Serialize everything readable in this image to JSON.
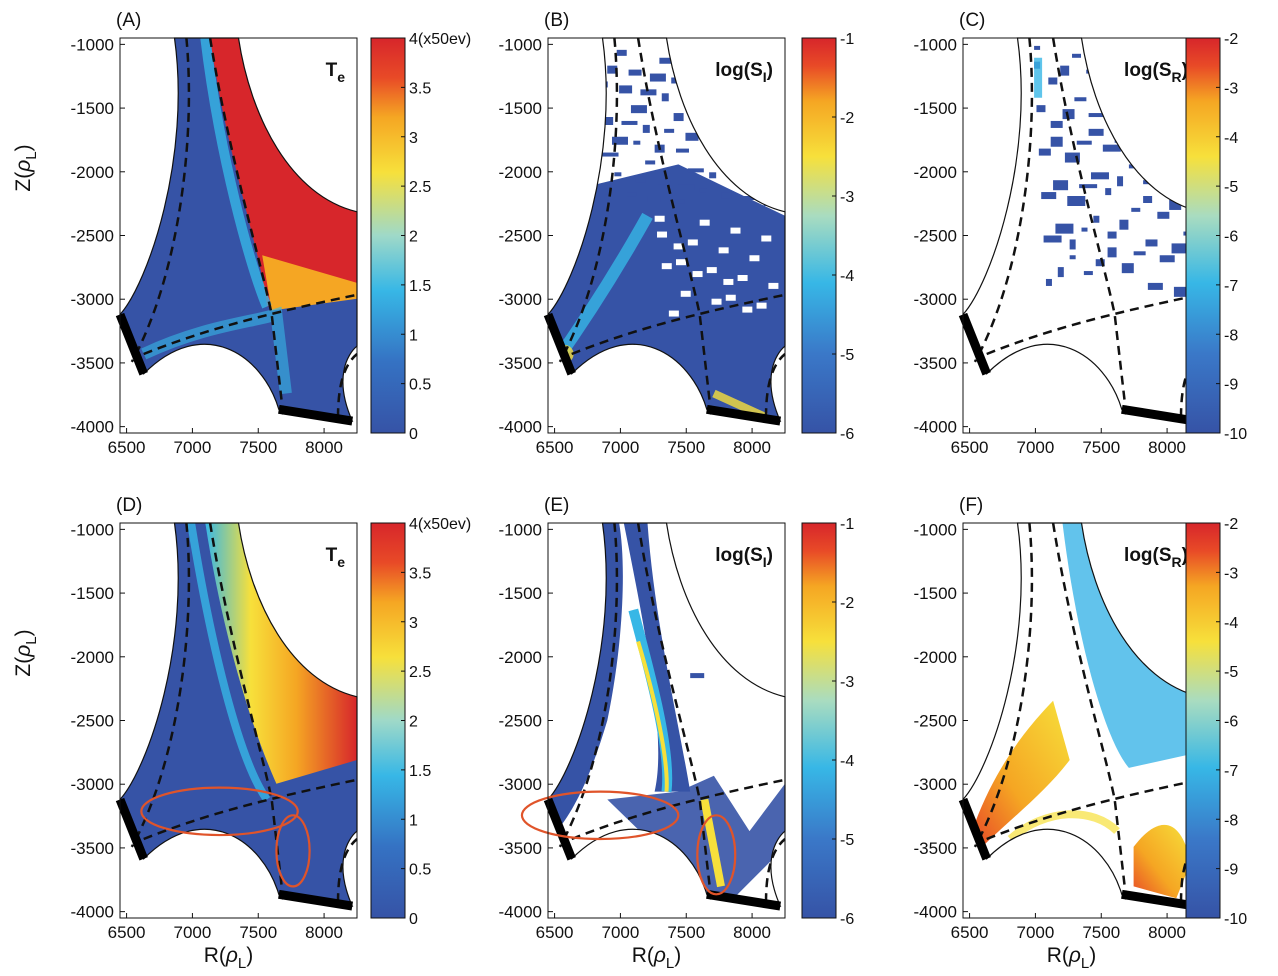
{
  "figure": {
    "ylabel_main": "Z(",
    "ylabel_sym": "ρ",
    "ylabel_sub": "L",
    "ylabel_close": ")",
    "xlabel_main": "R(",
    "xlabel_sym": "ρ",
    "xlabel_sub": "L",
    "xlabel_close": ")"
  },
  "colors": {
    "low": "#3653a6",
    "cyan": "#37b7e6",
    "yellow": "#f7e03b",
    "orange": "#f5a623",
    "red": "#d7262b",
    "wall": "#000000",
    "ellipse": "#e0542a",
    "separatrix": "#111111"
  },
  "chart_data": [
    {
      "panel": "(A)",
      "type": "heatmap",
      "quantity": "T",
      "quantity_sub": "e",
      "x_ticks": [
        "6500",
        "7000",
        "7500",
        "8000"
      ],
      "y_ticks": [
        "-1000",
        "-1500",
        "-2000",
        "-2500",
        "-3000",
        "-3500",
        "-4000"
      ],
      "xlim": [
        6450,
        8250
      ],
      "ylim": [
        -4050,
        -950
      ],
      "colorbar": {
        "ticks": [
          "4(x50ev)",
          "3.5",
          "3",
          "2.5",
          "2",
          "1.5",
          "1",
          "0.5",
          "0"
        ],
        "range": [
          0,
          4
        ],
        "unit": "(x50ev)"
      },
      "show_xlabel": false
    },
    {
      "panel": "(B)",
      "type": "heatmap",
      "quantity": "log(S",
      "quantity_sub": "I",
      "quantity_close": ")",
      "x_ticks": [
        "6500",
        "7000",
        "7500",
        "8000"
      ],
      "y_ticks": [
        "-1000",
        "-1500",
        "-2000",
        "-2500",
        "-3000",
        "-3500",
        "-4000"
      ],
      "xlim": [
        6450,
        8250
      ],
      "ylim": [
        -4050,
        -950
      ],
      "colorbar": {
        "ticks": [
          "-1",
          "-2",
          "-3",
          "-4",
          "-5",
          "-6"
        ],
        "range": [
          -6,
          -1
        ]
      },
      "show_xlabel": false
    },
    {
      "panel": "(C)",
      "type": "heatmap",
      "quantity": "log(S",
      "quantity_sub": "R",
      "quantity_close": ")",
      "x_ticks": [
        "6500",
        "7000",
        "7500",
        "8000"
      ],
      "y_ticks": [
        "-1000",
        "-1500",
        "-2000",
        "-2500",
        "-3000",
        "-3500",
        "-4000"
      ],
      "xlim": [
        6450,
        8250
      ],
      "ylim": [
        -4050,
        -950
      ],
      "colorbar": {
        "ticks": [
          "-2",
          "-3",
          "-4",
          "-5",
          "-6",
          "-7",
          "-8",
          "-9",
          "-10"
        ],
        "range": [
          -10,
          -2
        ]
      },
      "show_xlabel": false
    },
    {
      "panel": "(D)",
      "type": "heatmap",
      "quantity": "T",
      "quantity_sub": "e",
      "x_ticks": [
        "6500",
        "7000",
        "7500",
        "8000"
      ],
      "y_ticks": [
        "-1000",
        "-1500",
        "-2000",
        "-2500",
        "-3000",
        "-3500",
        "-4000"
      ],
      "xlim": [
        6450,
        8250
      ],
      "ylim": [
        -4050,
        -950
      ],
      "colorbar": {
        "ticks": [
          "4(x50ev)",
          "3.5",
          "3",
          "2.5",
          "2",
          "1.5",
          "1",
          "0.5",
          "0"
        ],
        "range": [
          0,
          4
        ],
        "unit": "(x50ev)"
      },
      "show_xlabel": true
    },
    {
      "panel": "(E)",
      "type": "heatmap",
      "quantity": "log(S",
      "quantity_sub": "I",
      "quantity_close": ")",
      "x_ticks": [
        "6500",
        "7000",
        "7500",
        "8000"
      ],
      "y_ticks": [
        "-1000",
        "-1500",
        "-2000",
        "-2500",
        "-3000",
        "-3500",
        "-4000"
      ],
      "xlim": [
        6450,
        8250
      ],
      "ylim": [
        -4050,
        -950
      ],
      "colorbar": {
        "ticks": [
          "-1",
          "-2",
          "-3",
          "-4",
          "-5",
          "-6"
        ],
        "range": [
          -6,
          -1
        ]
      },
      "show_xlabel": true
    },
    {
      "panel": "(F)",
      "type": "heatmap",
      "quantity": "log(S",
      "quantity_sub": "R",
      "quantity_close": ")",
      "x_ticks": [
        "6500",
        "7000",
        "7500",
        "8000"
      ],
      "y_ticks": [
        "-1000",
        "-1500",
        "-2000",
        "-2500",
        "-3000",
        "-3500",
        "-4000"
      ],
      "xlim": [
        6450,
        8250
      ],
      "ylim": [
        -4050,
        -950
      ],
      "colorbar": {
        "ticks": [
          "-2",
          "-3",
          "-4",
          "-5",
          "-6",
          "-7",
          "-8",
          "-9",
          "-10"
        ],
        "range": [
          -10,
          -2
        ]
      },
      "show_xlabel": true
    }
  ]
}
